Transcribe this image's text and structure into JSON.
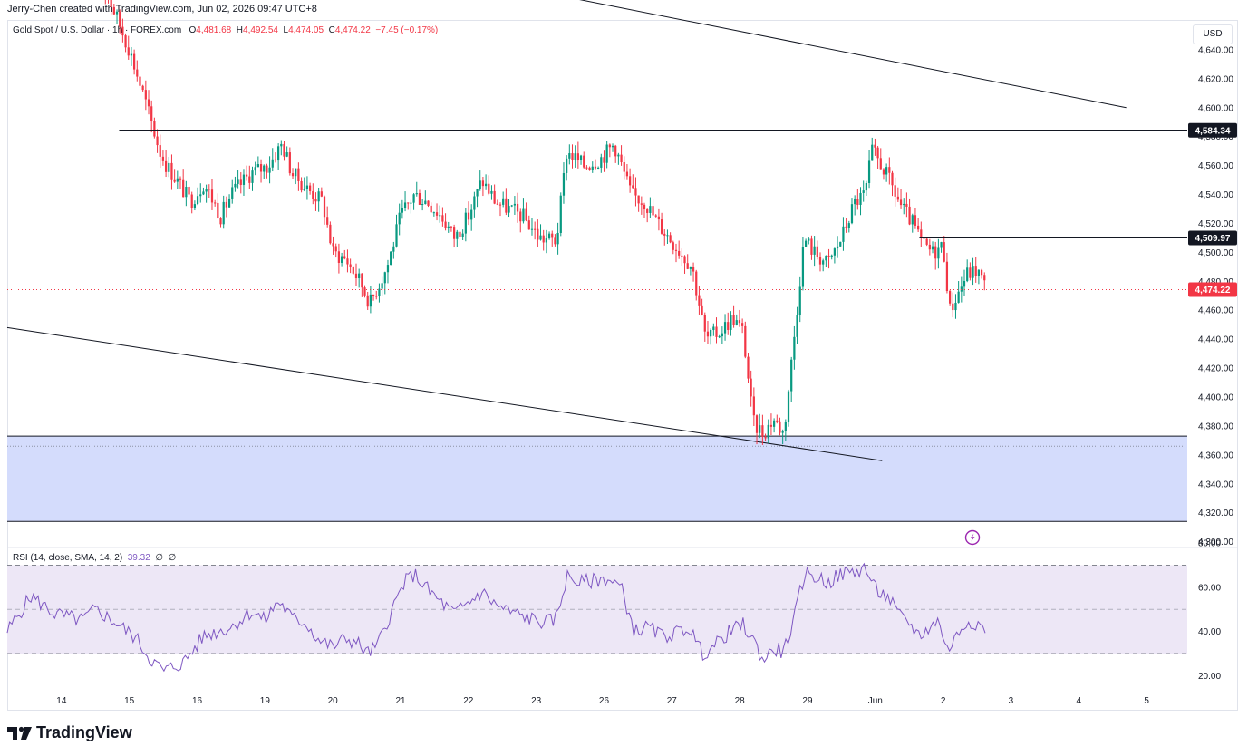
{
  "header": {
    "creator": "Jerry-Chen created with TradingView.com, Jun 02, 2026 09:47 UTC+8"
  },
  "legend": {
    "symbol": "Gold Spot / U.S. Dollar · 1h · FOREX.com",
    "o_key": "O",
    "o": "4,481.68",
    "h_key": "H",
    "h": "4,492.54",
    "l_key": "L",
    "l": "4,474.05",
    "c_key": "C",
    "c": "4,474.22",
    "change": "−7.45 (−0.17%)"
  },
  "currency": "USD",
  "price_labels": {
    "resistance": "4,584.34",
    "mid_level": "4,509.97",
    "last": "4,474.22"
  },
  "rsi_legend": {
    "title": "RSI (14, close, SMA, 14, 2)",
    "value": "39.32",
    "n1": "∅",
    "n2": "∅"
  },
  "brand": {
    "name": "TradingView",
    "logo_icon": "tradingview-logo-icon"
  },
  "colors": {
    "up": "#089981",
    "down": "#f23645",
    "rsi": "#7e57c2",
    "zone": "#d4dcfc",
    "rsi_band": "#ede7f6"
  },
  "chart_data": {
    "type": "candlestick",
    "y_ticks": [
      "4,300.00",
      "4,320.00",
      "4,340.00",
      "4,360.00",
      "4,380.00",
      "4,400.00",
      "4,420.00",
      "4,440.00",
      "4,460.00",
      "4,480.00",
      "4,500.00",
      "4,520.00",
      "4,540.00",
      "4,560.00",
      "4,580.00",
      "4,600.00",
      "4,620.00",
      "4,640.00"
    ],
    "ylim": [
      4296,
      4660
    ],
    "x_ticks": [
      {
        "label": "14",
        "x": 0.5
      },
      {
        "label": "15",
        "x": 1.5
      },
      {
        "label": "16",
        "x": 2.5
      },
      {
        "label": "19",
        "x": 3.5
      },
      {
        "label": "20",
        "x": 4.5
      },
      {
        "label": "21",
        "x": 5.5
      },
      {
        "label": "22",
        "x": 6.5
      },
      {
        "label": "23",
        "x": 7.5
      },
      {
        "label": "26",
        "x": 8.5
      },
      {
        "label": "27",
        "x": 9.5
      },
      {
        "label": "28",
        "x": 10.5
      },
      {
        "label": "29",
        "x": 11.5
      },
      {
        "label": "Jun",
        "x": 12.5
      },
      {
        "label": "2",
        "x": 13.5
      },
      {
        "label": "3",
        "x": 14.5
      },
      {
        "label": "4",
        "x": 15.5
      },
      {
        "label": "5",
        "x": 16.5
      }
    ],
    "xlim": [
      -0.3,
      17.1
    ],
    "price_path": [
      [
        1.0,
        4700
      ],
      [
        1.25,
        4670
      ],
      [
        1.5,
        4640
      ],
      [
        1.7,
        4610
      ],
      [
        1.95,
        4570
      ],
      [
        2.05,
        4560
      ],
      [
        2.2,
        4550
      ],
      [
        2.4,
        4535
      ],
      [
        2.6,
        4548
      ],
      [
        2.85,
        4525
      ],
      [
        3.0,
        4540
      ],
      [
        3.3,
        4555
      ],
      [
        3.55,
        4560
      ],
      [
        3.75,
        4575
      ],
      [
        3.9,
        4555
      ],
      [
        4.1,
        4545
      ],
      [
        4.35,
        4535
      ],
      [
        4.5,
        4500
      ],
      [
        4.7,
        4495
      ],
      [
        4.9,
        4480
      ],
      [
        5.05,
        4465
      ],
      [
        5.3,
        4490
      ],
      [
        5.5,
        4525
      ],
      [
        5.7,
        4540
      ],
      [
        5.9,
        4535
      ],
      [
        6.1,
        4525
      ],
      [
        6.3,
        4510
      ],
      [
        6.5,
        4525
      ],
      [
        6.7,
        4550
      ],
      [
        6.9,
        4535
      ],
      [
        7.1,
        4530
      ],
      [
        7.3,
        4525
      ],
      [
        7.55,
        4510
      ],
      [
        7.8,
        4508
      ],
      [
        7.95,
        4570
      ],
      [
        8.2,
        4560
      ],
      [
        8.45,
        4565
      ],
      [
        8.65,
        4575
      ],
      [
        8.9,
        4540
      ],
      [
        9.1,
        4535
      ],
      [
        9.3,
        4520
      ],
      [
        9.55,
        4505
      ],
      [
        9.8,
        4490
      ],
      [
        10.0,
        4440
      ],
      [
        10.2,
        4445
      ],
      [
        10.4,
        4455
      ],
      [
        10.55,
        4445
      ],
      [
        10.7,
        4382
      ],
      [
        10.85,
        4375
      ],
      [
        11.0,
        4385
      ],
      [
        11.15,
        4375
      ],
      [
        11.3,
        4440
      ],
      [
        11.45,
        4510
      ],
      [
        11.6,
        4500
      ],
      [
        11.8,
        4492
      ],
      [
        12.0,
        4510
      ],
      [
        12.2,
        4535
      ],
      [
        12.35,
        4540
      ],
      [
        12.45,
        4570
      ],
      [
        12.6,
        4560
      ],
      [
        12.75,
        4545
      ],
      [
        12.9,
        4530
      ],
      [
        13.05,
        4520
      ],
      [
        13.2,
        4505
      ],
      [
        13.35,
        4500
      ],
      [
        13.5,
        4505
      ],
      [
        13.6,
        4460
      ],
      [
        13.7,
        4470
      ],
      [
        13.85,
        4485
      ],
      [
        14.0,
        4488
      ],
      [
        14.15,
        4474
      ]
    ],
    "rsi": {
      "ylim": [
        14,
        78
      ],
      "ticks": [
        "20.00",
        "40.00",
        "60.00",
        "80.00"
      ],
      "tick_values": [
        20,
        40,
        60,
        80
      ],
      "upper": 70,
      "middle": 50,
      "lower": 30,
      "path": [
        [
          -0.3,
          40
        ],
        [
          0.05,
          56
        ],
        [
          0.4,
          48
        ],
        [
          0.8,
          45
        ],
        [
          1.0,
          50
        ],
        [
          1.3,
          44
        ],
        [
          1.6,
          37
        ],
        [
          1.8,
          28
        ],
        [
          2.0,
          22
        ],
        [
          2.3,
          26
        ],
        [
          2.6,
          38
        ],
        [
          3.0,
          42
        ],
        [
          3.3,
          49
        ],
        [
          3.5,
          45
        ],
        [
          3.7,
          54
        ],
        [
          3.9,
          46
        ],
        [
          4.1,
          44
        ],
        [
          4.3,
          36
        ],
        [
          4.5,
          33
        ],
        [
          4.7,
          37
        ],
        [
          4.9,
          34
        ],
        [
          5.0,
          30
        ],
        [
          5.15,
          33
        ],
        [
          5.35,
          48
        ],
        [
          5.55,
          62
        ],
        [
          5.7,
          66
        ],
        [
          5.9,
          59
        ],
        [
          6.1,
          53
        ],
        [
          6.3,
          48
        ],
        [
          6.5,
          53
        ],
        [
          6.7,
          58
        ],
        [
          6.9,
          52
        ],
        [
          7.1,
          49
        ],
        [
          7.3,
          47
        ],
        [
          7.5,
          45
        ],
        [
          7.65,
          44
        ],
        [
          7.8,
          46
        ],
        [
          7.95,
          65
        ],
        [
          8.15,
          62
        ],
        [
          8.35,
          63
        ],
        [
          8.55,
          64
        ],
        [
          8.75,
          60
        ],
        [
          8.95,
          40
        ],
        [
          9.15,
          42
        ],
        [
          9.35,
          38
        ],
        [
          9.55,
          39
        ],
        [
          9.75,
          42
        ],
        [
          9.95,
          30
        ],
        [
          10.15,
          34
        ],
        [
          10.35,
          40
        ],
        [
          10.55,
          43
        ],
        [
          10.7,
          36
        ],
        [
          10.85,
          27
        ],
        [
          11.0,
          32
        ],
        [
          11.15,
          31
        ],
        [
          11.3,
          45
        ],
        [
          11.45,
          66
        ],
        [
          11.6,
          65
        ],
        [
          11.8,
          62
        ],
        [
          12.0,
          66
        ],
        [
          12.2,
          67
        ],
        [
          12.35,
          69
        ],
        [
          12.5,
          59
        ],
        [
          12.7,
          55
        ],
        [
          12.85,
          47
        ],
        [
          13.0,
          44
        ],
        [
          13.15,
          38
        ],
        [
          13.3,
          42
        ],
        [
          13.45,
          45
        ],
        [
          13.55,
          31
        ],
        [
          13.7,
          38
        ],
        [
          13.85,
          45
        ],
        [
          14.0,
          44
        ],
        [
          14.15,
          39.32
        ]
      ]
    },
    "horizontal_levels": [
      {
        "name": "resistance",
        "value": 4584.34,
        "from_x": 1.35
      },
      {
        "name": "mid_level",
        "value": 4509.97,
        "from_x": 13.15
      }
    ],
    "last_price": 4474.22,
    "support_zone": {
      "top": 4373,
      "bottom": 4314,
      "dotted": 4366
    },
    "trend_lines": [
      {
        "name": "upper-channel",
        "points": [
          [
            7.35,
            4682
          ],
          [
            16.2,
            4600
          ]
        ]
      },
      {
        "name": "lower-channel",
        "points": [
          [
            -0.3,
            4448
          ],
          [
            12.6,
            4356
          ]
        ]
      }
    ]
  }
}
